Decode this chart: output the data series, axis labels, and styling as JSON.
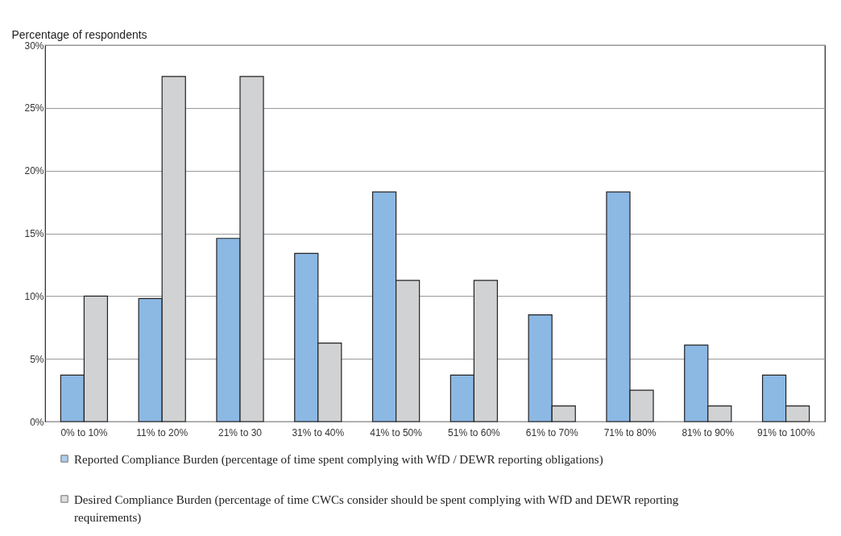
{
  "chart_data": {
    "type": "bar",
    "ylabel": "Percentage of respondents",
    "categories": [
      "0% to 10%",
      "11% to 20%",
      "21% to 30",
      "31% to 40%",
      "41% to 50%",
      "51% to 60%",
      "61% to 70%",
      "71% to 80%",
      "81% to 90%",
      "91% to 100%"
    ],
    "series": [
      {
        "name": "Reported Compliance Burden (percentage of time spent complying with WfD / DEWR reporting obligations)",
        "color": "#8cb8e4",
        "values": [
          3.7,
          9.8,
          14.6,
          13.4,
          18.3,
          3.7,
          8.5,
          18.3,
          6.1,
          3.7
        ]
      },
      {
        "name": "Desired Compliance Burden (percentage of time CWCs consider should be spent complying with WfD and DEWR reporting requirements)",
        "color": "#d1d2d4",
        "values": [
          10,
          27.5,
          27.5,
          6.25,
          11.25,
          11.25,
          1.25,
          2.5,
          1.25,
          1.25
        ]
      }
    ],
    "ylim": [
      0,
      30
    ],
    "yticks": [
      {
        "value": 0,
        "label": "0%"
      },
      {
        "value": 5,
        "label": "5%"
      },
      {
        "value": 10,
        "label": "10%"
      },
      {
        "value": 15,
        "label": "15%"
      },
      {
        "value": 20,
        "label": "20%"
      },
      {
        "value": 25,
        "label": "25%"
      },
      {
        "value": 30,
        "label": "30%"
      }
    ],
    "grid": "y",
    "legend": "bottom"
  }
}
